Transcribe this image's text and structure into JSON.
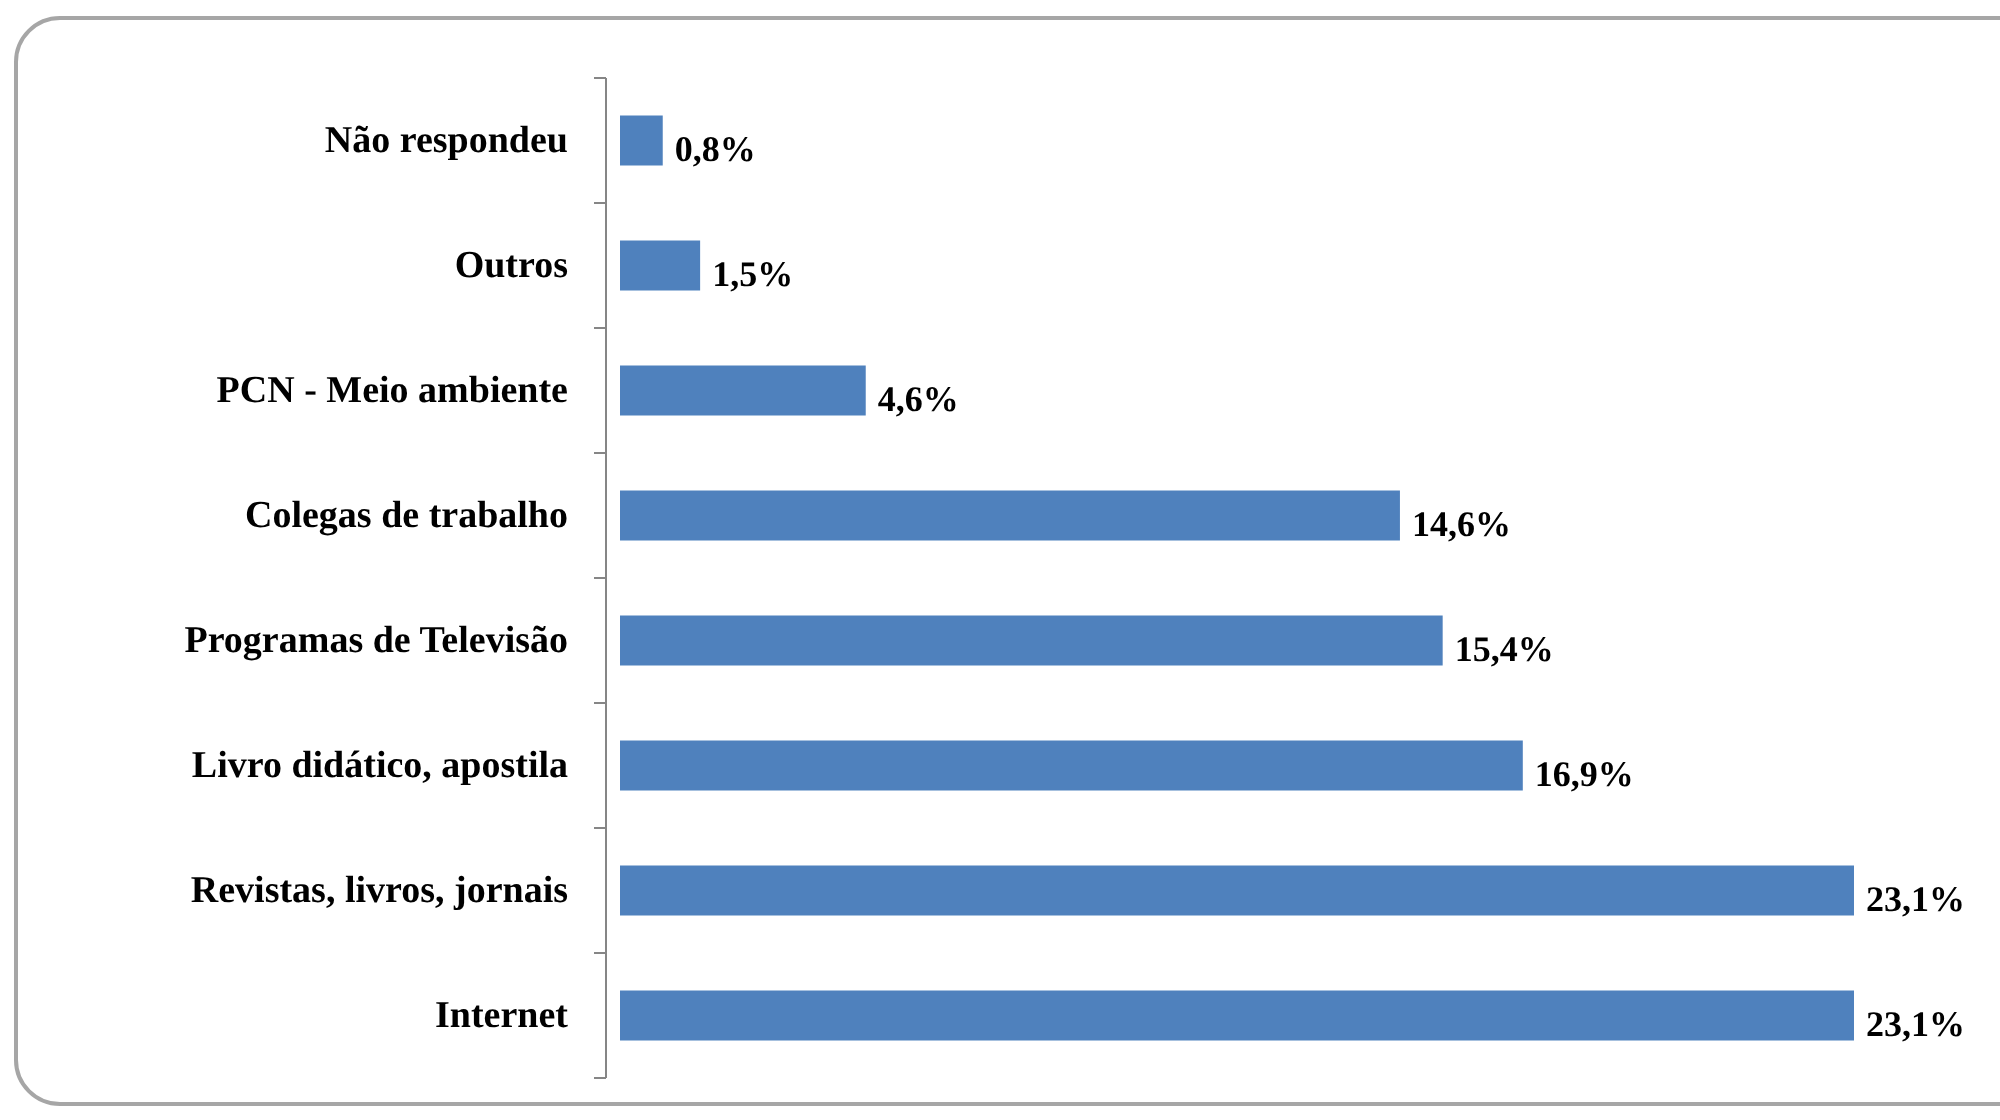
{
  "chart_data": {
    "type": "bar",
    "orientation": "horizontal",
    "categories": [
      "Não respondeu",
      "Outros",
      "PCN - Meio ambiente",
      "Colegas de trabalho",
      "Programas de Televisão",
      "Livro didático, apostila",
      "Revistas, livros, jornais",
      "Internet"
    ],
    "values": [
      0.8,
      1.5,
      4.6,
      14.6,
      15.4,
      16.9,
      23.1,
      23.1
    ],
    "value_labels": [
      "0,8%",
      "1,5%",
      "4,6%",
      "14,6%",
      "15,4%",
      "16,9%",
      "23,1%",
      "23,1%"
    ],
    "color": "#4f81bd"
  }
}
